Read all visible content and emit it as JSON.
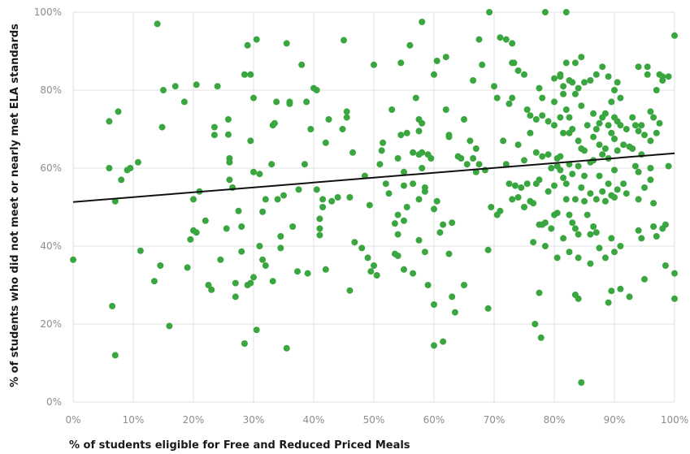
{
  "chart_data": {
    "type": "scatter",
    "xlabel": "% of students eligible for Free and Reduced Priced Meals",
    "ylabel": "% of students who did not meet or nearly met ELA standards",
    "xlim": [
      0,
      100
    ],
    "ylim": [
      0,
      100
    ],
    "x_ticks": [
      "0%",
      "10%",
      "20%",
      "30%",
      "40%",
      "50%",
      "60%",
      "70%",
      "80%",
      "90%",
      "100%"
    ],
    "y_ticks": [
      "0%",
      "20%",
      "40%",
      "60%",
      "80%",
      "100%"
    ],
    "grid": true,
    "point_color": "#3aa63f",
    "trendline": {
      "color": "#111111",
      "x": [
        0,
        100
      ],
      "y": [
        51.3,
        63.8
      ]
    },
    "points": [
      [
        0,
        36.5
      ],
      [
        6,
        72
      ],
      [
        6,
        60
      ],
      [
        6.5,
        24.6
      ],
      [
        7,
        51.5
      ],
      [
        7,
        12
      ],
      [
        7.5,
        74.5
      ],
      [
        8,
        57
      ],
      [
        9,
        59.5
      ],
      [
        9.5,
        60
      ],
      [
        10.8,
        61.5
      ],
      [
        11.2,
        38.8
      ],
      [
        13.5,
        31
      ],
      [
        14,
        97
      ],
      [
        14.5,
        35
      ],
      [
        14.8,
        70.5
      ],
      [
        15,
        80
      ],
      [
        16,
        19.5
      ],
      [
        17,
        81
      ],
      [
        18.5,
        77
      ],
      [
        19,
        34.5
      ],
      [
        19.5,
        41.7
      ],
      [
        20,
        44
      ],
      [
        20,
        52
      ],
      [
        20.5,
        43.5
      ],
      [
        20.5,
        81.4
      ],
      [
        21,
        54
      ],
      [
        22,
        46.5
      ],
      [
        22.5,
        30
      ],
      [
        23,
        28.8
      ],
      [
        23.5,
        68.5
      ],
      [
        23.5,
        70.5
      ],
      [
        24,
        81
      ],
      [
        24.5,
        36.5
      ],
      [
        25.5,
        44.5
      ],
      [
        25.8,
        72.5
      ],
      [
        25.8,
        68.6
      ],
      [
        26,
        62.5
      ],
      [
        26,
        61.5
      ],
      [
        26,
        57
      ],
      [
        26.5,
        55
      ],
      [
        27,
        30.5
      ],
      [
        27,
        27
      ],
      [
        27.5,
        49
      ],
      [
        28,
        45
      ],
      [
        28,
        38.6
      ],
      [
        28.5,
        84
      ],
      [
        28.5,
        15
      ],
      [
        29,
        30
      ],
      [
        29,
        91.5
      ],
      [
        29.5,
        67
      ],
      [
        29.5,
        84
      ],
      [
        29.5,
        30.5
      ],
      [
        30,
        78
      ],
      [
        30,
        59
      ],
      [
        30,
        32
      ],
      [
        30.5,
        93
      ],
      [
        30.5,
        18.5
      ],
      [
        31,
        40
      ],
      [
        31,
        58.5
      ],
      [
        31.5,
        48.8
      ],
      [
        31.5,
        36.5
      ],
      [
        32,
        35
      ],
      [
        32,
        52
      ],
      [
        33,
        61
      ],
      [
        33.2,
        31
      ],
      [
        33.2,
        71
      ],
      [
        33.5,
        71.5
      ],
      [
        33.8,
        77
      ],
      [
        34,
        52
      ],
      [
        34.5,
        42.5
      ],
      [
        34.5,
        39.5
      ],
      [
        35,
        53
      ],
      [
        35.5,
        13.8
      ],
      [
        35.5,
        92
      ],
      [
        36,
        77
      ],
      [
        36,
        76.5
      ],
      [
        36.5,
        45
      ],
      [
        37.3,
        33.5
      ],
      [
        37.5,
        54.5
      ],
      [
        38,
        86.5
      ],
      [
        38.5,
        61
      ],
      [
        38.8,
        77
      ],
      [
        39,
        33
      ],
      [
        39.5,
        70
      ],
      [
        40,
        80.5
      ],
      [
        40.5,
        54.5
      ],
      [
        40.5,
        80
      ],
      [
        41,
        47
      ],
      [
        41,
        44.5
      ],
      [
        41,
        42.8
      ],
      [
        41.5,
        52
      ],
      [
        41.5,
        50
      ],
      [
        42,
        66.5
      ],
      [
        42,
        34
      ],
      [
        42.5,
        72.5
      ],
      [
        43,
        51.5
      ],
      [
        44,
        52.5
      ],
      [
        44.8,
        70
      ],
      [
        45,
        92.8
      ],
      [
        45.5,
        74.5
      ],
      [
        45.5,
        73
      ],
      [
        46,
        52.5
      ],
      [
        46,
        28.6
      ],
      [
        46.5,
        64
      ],
      [
        46.8,
        41
      ],
      [
        48,
        39.5
      ],
      [
        48.5,
        58
      ],
      [
        49,
        37
      ],
      [
        49.3,
        50.5
      ],
      [
        49.5,
        33.5
      ],
      [
        50,
        86.5
      ],
      [
        50,
        35
      ],
      [
        50.5,
        32.5
      ],
      [
        51,
        61
      ],
      [
        51.3,
        64.5
      ],
      [
        51.5,
        66.5
      ],
      [
        52,
        56
      ],
      [
        52.5,
        53.5
      ],
      [
        53,
        75
      ],
      [
        53.5,
        45.8
      ],
      [
        53.5,
        38
      ],
      [
        54,
        62.5
      ],
      [
        54,
        48
      ],
      [
        54,
        43
      ],
      [
        54,
        37.5
      ],
      [
        54.5,
        87
      ],
      [
        54.5,
        68.5
      ],
      [
        55,
        59
      ],
      [
        55,
        55.5
      ],
      [
        55,
        46.5
      ],
      [
        55,
        34
      ],
      [
        55.5,
        69
      ],
      [
        55.5,
        50
      ],
      [
        56,
        91.5
      ],
      [
        56.5,
        64
      ],
      [
        56.5,
        56
      ],
      [
        56.5,
        33
      ],
      [
        57,
        78
      ],
      [
        57.5,
        72.5
      ],
      [
        57.5,
        69.5
      ],
      [
        57.5,
        63.5
      ],
      [
        57.5,
        52
      ],
      [
        57.5,
        41.5
      ],
      [
        58,
        60
      ],
      [
        58,
        97.5
      ],
      [
        58,
        71.5
      ],
      [
        58,
        64
      ],
      [
        58.5,
        55
      ],
      [
        58.5,
        54
      ],
      [
        58.5,
        38.5
      ],
      [
        59,
        63.5
      ],
      [
        59,
        30
      ],
      [
        59.5,
        62.5
      ],
      [
        60,
        49.5
      ],
      [
        60,
        25
      ],
      [
        60,
        84
      ],
      [
        60,
        14.5
      ],
      [
        60.5,
        87.5
      ],
      [
        60.5,
        51.5
      ],
      [
        61,
        43.5
      ],
      [
        61.5,
        45.5
      ],
      [
        61.5,
        15.5
      ],
      [
        62,
        88.5
      ],
      [
        62,
        75
      ],
      [
        62.5,
        68.5
      ],
      [
        62.5,
        68
      ],
      [
        62.5,
        38
      ],
      [
        63,
        46
      ],
      [
        63,
        27
      ],
      [
        63.5,
        23
      ],
      [
        64,
        63
      ],
      [
        64.5,
        62.5
      ],
      [
        65,
        30
      ],
      [
        65,
        72.5
      ],
      [
        65.5,
        61
      ],
      [
        66,
        67
      ],
      [
        66.5,
        82.5
      ],
      [
        66.5,
        62.5
      ],
      [
        67,
        59
      ],
      [
        67,
        65
      ],
      [
        67.5,
        93
      ],
      [
        67.5,
        61
      ],
      [
        68,
        86.5
      ],
      [
        68.5,
        59.5
      ],
      [
        69,
        39
      ],
      [
        69,
        24
      ],
      [
        69.2,
        100
      ],
      [
        69.5,
        50
      ],
      [
        70,
        81
      ],
      [
        70.5,
        78
      ],
      [
        70.5,
        48
      ],
      [
        71,
        93.5
      ],
      [
        71,
        49
      ],
      [
        71.5,
        67
      ],
      [
        72,
        93
      ],
      [
        72,
        61
      ],
      [
        72.5,
        76.5
      ],
      [
        72.5,
        56
      ],
      [
        73,
        92
      ],
      [
        73,
        87
      ],
      [
        73,
        78
      ],
      [
        73,
        52
      ],
      [
        73.3,
        87
      ],
      [
        73.5,
        55.5
      ],
      [
        74,
        85
      ],
      [
        74,
        66
      ],
      [
        74,
        52.5
      ],
      [
        74.5,
        55
      ],
      [
        75,
        84
      ],
      [
        75,
        62
      ],
      [
        75,
        50
      ],
      [
        75.5,
        75
      ],
      [
        75.5,
        56
      ],
      [
        76,
        73.5
      ],
      [
        76,
        69
      ],
      [
        76,
        51.5
      ],
      [
        76.5,
        51
      ],
      [
        76.5,
        41
      ],
      [
        76.8,
        20
      ],
      [
        77,
        72.5
      ],
      [
        77,
        64
      ],
      [
        77,
        56
      ],
      [
        77.5,
        80.5
      ],
      [
        77.5,
        57
      ],
      [
        77.5,
        45.5
      ],
      [
        77.5,
        28
      ],
      [
        77.8,
        16.5
      ],
      [
        78,
        78
      ],
      [
        78,
        73.5
      ],
      [
        78,
        63
      ],
      [
        78,
        45.5
      ],
      [
        78.5,
        46
      ],
      [
        78.5,
        40
      ],
      [
        78.5,
        100
      ],
      [
        79,
        72
      ],
      [
        79,
        63.5
      ],
      [
        79,
        54
      ],
      [
        79.5,
        44.5
      ],
      [
        79.5,
        60
      ],
      [
        80,
        83
      ],
      [
        80,
        77
      ],
      [
        80,
        71
      ],
      [
        80,
        55.5
      ],
      [
        80,
        48
      ],
      [
        80.5,
        62.5
      ],
      [
        80.5,
        60.5
      ],
      [
        80.5,
        48.5
      ],
      [
        80.5,
        37
      ],
      [
        81,
        84
      ],
      [
        81,
        83.5
      ],
      [
        81,
        73
      ],
      [
        81,
        63
      ],
      [
        81,
        59.5
      ],
      [
        81.5,
        81
      ],
      [
        81.5,
        79
      ],
      [
        81.5,
        69
      ],
      [
        81.5,
        57.5
      ],
      [
        81.5,
        42
      ],
      [
        82,
        100
      ],
      [
        82,
        87
      ],
      [
        82,
        75
      ],
      [
        82,
        56
      ],
      [
        82,
        52
      ],
      [
        82.5,
        82.5
      ],
      [
        82.5,
        73
      ],
      [
        82.5,
        69
      ],
      [
        82.5,
        61
      ],
      [
        82.5,
        48
      ],
      [
        82.5,
        38.5
      ],
      [
        83,
        82
      ],
      [
        83,
        70
      ],
      [
        83,
        58.5
      ],
      [
        83,
        46
      ],
      [
        83.5,
        87
      ],
      [
        83.5,
        79
      ],
      [
        83.5,
        52
      ],
      [
        83.5,
        44.5
      ],
      [
        83.5,
        27.5
      ],
      [
        84,
        80.5
      ],
      [
        84,
        67
      ],
      [
        84,
        60.5
      ],
      [
        84,
        43
      ],
      [
        84,
        26.5
      ],
      [
        84,
        37
      ],
      [
        84.5,
        88.5
      ],
      [
        84.5,
        76
      ],
      [
        84.5,
        65
      ],
      [
        84.5,
        55
      ],
      [
        84.5,
        5
      ],
      [
        85,
        82
      ],
      [
        85,
        64.5
      ],
      [
        85,
        58
      ],
      [
        85,
        51.5
      ],
      [
        85.5,
        71
      ],
      [
        85.5,
        48
      ],
      [
        86,
        82.5
      ],
      [
        86,
        61.5
      ],
      [
        86,
        53.5
      ],
      [
        86,
        43
      ],
      [
        86,
        35.5
      ],
      [
        86.5,
        74
      ],
      [
        86.5,
        68
      ],
      [
        86.5,
        62
      ],
      [
        86.5,
        45
      ],
      [
        87,
        84
      ],
      [
        87,
        70
      ],
      [
        87,
        52
      ],
      [
        87,
        43.5
      ],
      [
        87.5,
        71.5
      ],
      [
        87.5,
        66
      ],
      [
        87.5,
        58
      ],
      [
        87.5,
        39.5
      ],
      [
        88,
        86
      ],
      [
        88,
        73
      ],
      [
        88,
        63.5
      ],
      [
        88,
        54
      ],
      [
        88.5,
        74
      ],
      [
        88.5,
        65
      ],
      [
        88.5,
        51.5
      ],
      [
        88.5,
        37
      ],
      [
        89,
        83.5
      ],
      [
        89,
        71
      ],
      [
        89,
        62.5
      ],
      [
        89,
        56
      ],
      [
        89,
        25.5
      ],
      [
        89.5,
        77
      ],
      [
        89.5,
        69
      ],
      [
        89.5,
        53
      ],
      [
        89.5,
        42
      ],
      [
        89.5,
        28.5
      ],
      [
        90,
        80
      ],
      [
        90,
        73
      ],
      [
        90,
        67.5
      ],
      [
        90,
        59.5
      ],
      [
        90,
        52.5
      ],
      [
        90,
        38.5
      ],
      [
        90.5,
        82
      ],
      [
        90.5,
        72
      ],
      [
        90.5,
        64.5
      ],
      [
        90.5,
        54.5
      ],
      [
        91,
        78
      ],
      [
        91,
        71
      ],
      [
        91,
        40
      ],
      [
        91,
        29
      ],
      [
        91.5,
        66
      ],
      [
        91.5,
        56
      ],
      [
        92,
        70
      ],
      [
        92,
        53.5
      ],
      [
        92.5,
        65.5
      ],
      [
        92.5,
        27
      ],
      [
        93,
        73
      ],
      [
        93,
        65
      ],
      [
        93.5,
        71
      ],
      [
        93.5,
        60.5
      ],
      [
        94,
        86
      ],
      [
        94,
        69.5
      ],
      [
        94,
        59
      ],
      [
        94,
        52
      ],
      [
        94,
        44
      ],
      [
        94.5,
        71
      ],
      [
        94.5,
        63.5
      ],
      [
        94.5,
        42
      ],
      [
        95,
        68.5
      ],
      [
        95,
        55
      ],
      [
        95,
        31.5
      ],
      [
        95.5,
        86
      ],
      [
        95.5,
        84
      ],
      [
        96,
        74.5
      ],
      [
        96,
        67
      ],
      [
        96,
        60
      ],
      [
        96,
        57
      ],
      [
        96.5,
        73
      ],
      [
        96.5,
        51
      ],
      [
        96.5,
        45
      ],
      [
        97,
        80
      ],
      [
        97,
        69
      ],
      [
        97,
        42.5
      ],
      [
        97.5,
        84
      ],
      [
        97.5,
        71.5
      ],
      [
        98,
        83.5
      ],
      [
        98,
        82.5
      ],
      [
        98,
        44.5
      ],
      [
        98.5,
        45.5
      ],
      [
        98.5,
        35
      ],
      [
        99,
        83.5
      ],
      [
        99,
        60.5
      ],
      [
        100,
        94
      ],
      [
        100,
        33
      ],
      [
        100,
        26.5
      ]
    ]
  }
}
